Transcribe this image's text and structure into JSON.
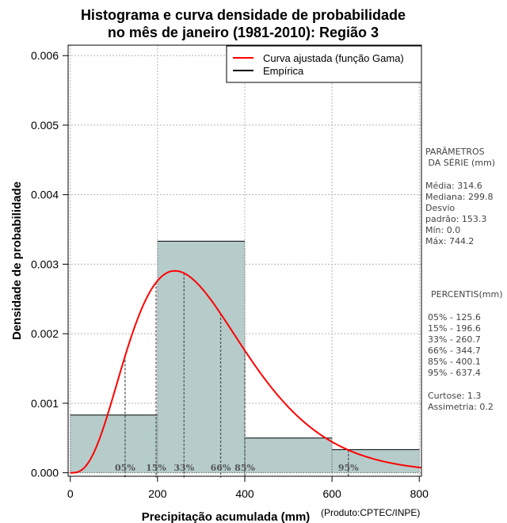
{
  "chart_data": {
    "type": "histogram",
    "title_line1": "Histograma e curva densidade de probabilidade",
    "title_line2": "no mês de janeiro (1981-2010): Região 3",
    "xlabel": "Precipitação acumulada (mm)",
    "ylabel": "Densidade de probabilidade",
    "credit": "(Produto:CPTEC/INPE)",
    "xlim": [
      -5,
      805
    ],
    "ylim": [
      -5e-05,
      0.00615
    ],
    "x_ticks": [
      0,
      200,
      400,
      600,
      800
    ],
    "x_tick_labels": [
      "0",
      "200",
      "400",
      "600",
      "800"
    ],
    "y_ticks": [
      0.0,
      0.001,
      0.002,
      0.003,
      0.004,
      0.005,
      0.006
    ],
    "y_tick_labels": [
      "0.000",
      "0.001",
      "0.002",
      "0.003",
      "0.004",
      "0.005",
      "0.006"
    ],
    "grid": true,
    "bins": [
      {
        "x0": 0,
        "x1": 200,
        "density": 0.00083
      },
      {
        "x0": 200,
        "x1": 400,
        "density": 0.00333
      },
      {
        "x0": 400,
        "x1": 600,
        "density": 0.0005
      },
      {
        "x0": 600,
        "x1": 800,
        "density": 0.000333
      }
    ],
    "curve": {
      "name": "Curva ajustada (função Gama)",
      "color": "#ff0000",
      "distribution": "gamma",
      "mean": 314.6,
      "sd": 153.3
    },
    "legend": [
      {
        "label": "Curva ajustada (função Gama)",
        "color": "#ff0000"
      },
      {
        "label": "Empírica",
        "color": "#000000"
      }
    ],
    "legend_position": "top-right",
    "percentile_markers": [
      {
        "label": "05%",
        "value": 125.6
      },
      {
        "label": "15%",
        "value": 196.6
      },
      {
        "label": "33%",
        "value": 260.7
      },
      {
        "label": "66%",
        "value": 344.7
      },
      {
        "label": "85%",
        "value": 400.1
      },
      {
        "label": "95%",
        "value": 637.4
      }
    ],
    "bar_color": "#b5cccb",
    "bar_edge_color": "#000000"
  },
  "side_panel": {
    "params_title_1": "PARÂMETROS",
    "params_title_2": " DA SÉRIE (mm)",
    "media": "Média:  314.6",
    "mediana": "Mediana:  299.8",
    "desvio": "Desvio",
    "padrao": "padrão:  153.3",
    "min": "Mín:  0.0",
    "max": "Máx:  744.2",
    "percentis_title": "PERCENTIS(mm)",
    "p05": "05% -  125.6",
    "p15": "15% -  196.6",
    "p33": "33% -  260.7",
    "p66": "66% -  344.7",
    "p85": "85% -  400.1",
    "p95": "95% -  637.4",
    "curtose": "Curtose:  1.3",
    "assimetria": "Assimetria:  0.2"
  }
}
